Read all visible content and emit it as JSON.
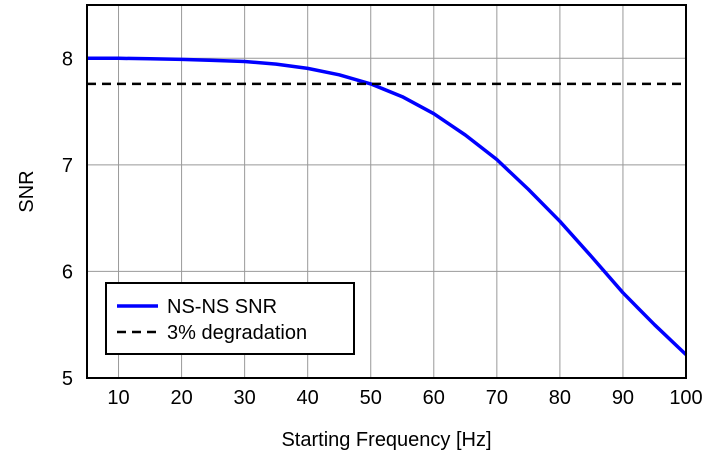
{
  "chart_data": {
    "type": "line",
    "xlabel": "Starting Frequency [Hz]",
    "ylabel": "SNR",
    "xlim": [
      5,
      100
    ],
    "ylim": [
      5,
      8.5
    ],
    "xticks": [
      10,
      20,
      30,
      40,
      50,
      60,
      70,
      80,
      90,
      100
    ],
    "yticks": [
      5,
      6,
      7,
      8
    ],
    "grid": true,
    "legend_position": "bottom-left",
    "series": [
      {
        "name": "NS-NS SNR",
        "style": "solid",
        "color": "#0000ff",
        "x": [
          5,
          10,
          15,
          20,
          25,
          30,
          35,
          40,
          45,
          50,
          55,
          60,
          65,
          70,
          75,
          80,
          85,
          90,
          95,
          100
        ],
        "y": [
          8.0,
          8.0,
          7.995,
          7.99,
          7.98,
          7.97,
          7.945,
          7.905,
          7.845,
          7.76,
          7.64,
          7.48,
          7.28,
          7.05,
          6.77,
          6.47,
          6.14,
          5.8,
          5.5,
          5.22
        ]
      },
      {
        "name": "3% degradation",
        "style": "dashed",
        "color": "#000000",
        "x": [
          5,
          100
        ],
        "y": [
          7.76,
          7.76
        ]
      }
    ]
  }
}
